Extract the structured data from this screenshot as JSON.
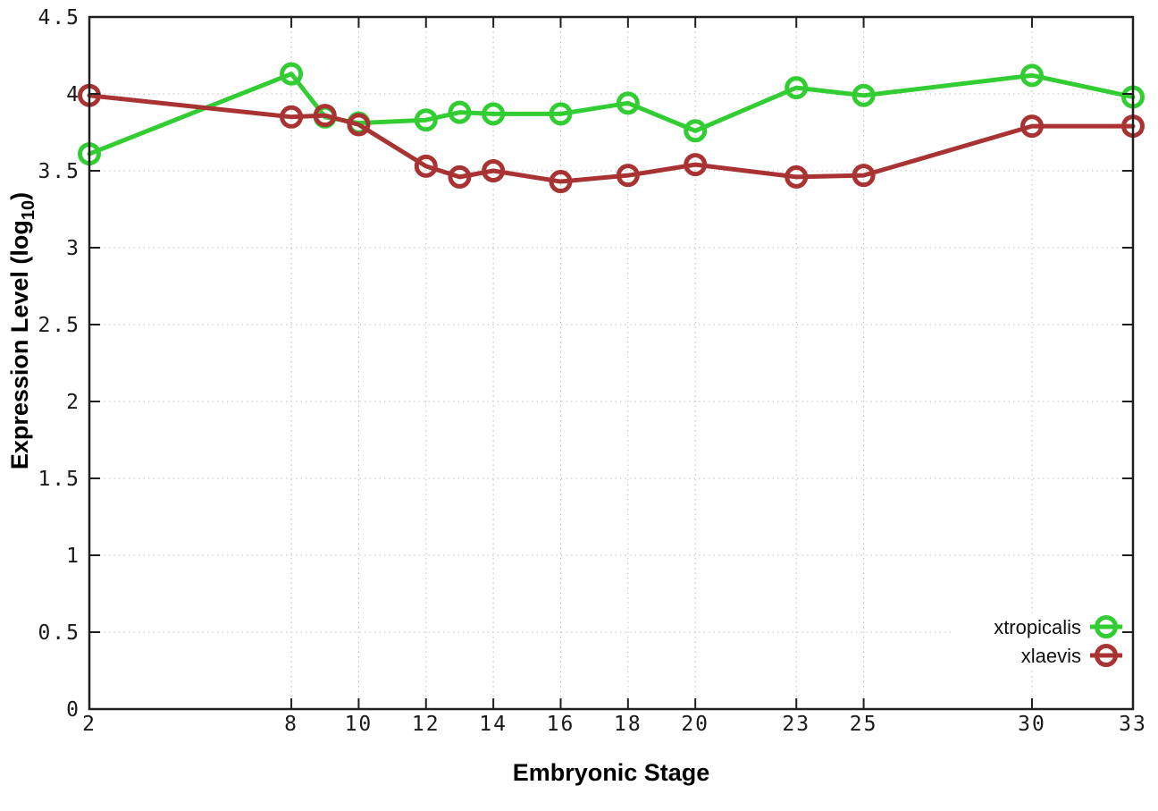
{
  "chart_data": {
    "type": "line",
    "title": "",
    "xlabel": "Embryonic Stage",
    "ylabel": "Expression Level (log10)",
    "ylabel_parts": {
      "base": "Expression Level (log",
      "subscript": "10",
      "close": ")"
    },
    "xlim": [
      2,
      33
    ],
    "ylim": [
      0,
      4.5
    ],
    "grid": true,
    "x_ticks": [
      2,
      8,
      10,
      12,
      14,
      16,
      18,
      20,
      23,
      25,
      30,
      33
    ],
    "x_tick_labels": [
      "2",
      "8",
      "10",
      "12",
      "14",
      "16",
      "18",
      "20",
      "23",
      "25",
      "30",
      "33"
    ],
    "y_ticks": [
      0,
      0.5,
      1,
      1.5,
      2,
      2.5,
      3,
      3.5,
      4,
      4.5
    ],
    "y_tick_labels": [
      "0",
      "0.5",
      "1",
      "1.5",
      "2",
      "2.5",
      "3",
      "3.5",
      "4",
      "4.5"
    ],
    "x": [
      2,
      8,
      9,
      10,
      12,
      13,
      14,
      16,
      18,
      20,
      23,
      25,
      30,
      33
    ],
    "series": [
      {
        "name": "xtropicalis",
        "color": "#32cd32",
        "marker": "open-circle",
        "values": [
          3.61,
          4.13,
          3.85,
          3.81,
          3.83,
          3.88,
          3.87,
          3.87,
          3.94,
          3.76,
          4.04,
          3.99,
          4.12,
          3.98
        ]
      },
      {
        "name": "xlaevis",
        "color": "#a93232",
        "marker": "open-circle",
        "values": [
          3.99,
          3.85,
          3.86,
          3.8,
          3.53,
          3.46,
          3.5,
          3.43,
          3.47,
          3.54,
          3.46,
          3.47,
          3.79,
          3.79
        ]
      }
    ],
    "legend_position": "bottom-right",
    "legend_entries": [
      "xtropicalis",
      "xlaevis"
    ]
  },
  "style": {
    "background": "#ffffff",
    "grid_color": "#bdbdbd",
    "axis_color": "#1f1f1f",
    "text_color": "#000000"
  }
}
